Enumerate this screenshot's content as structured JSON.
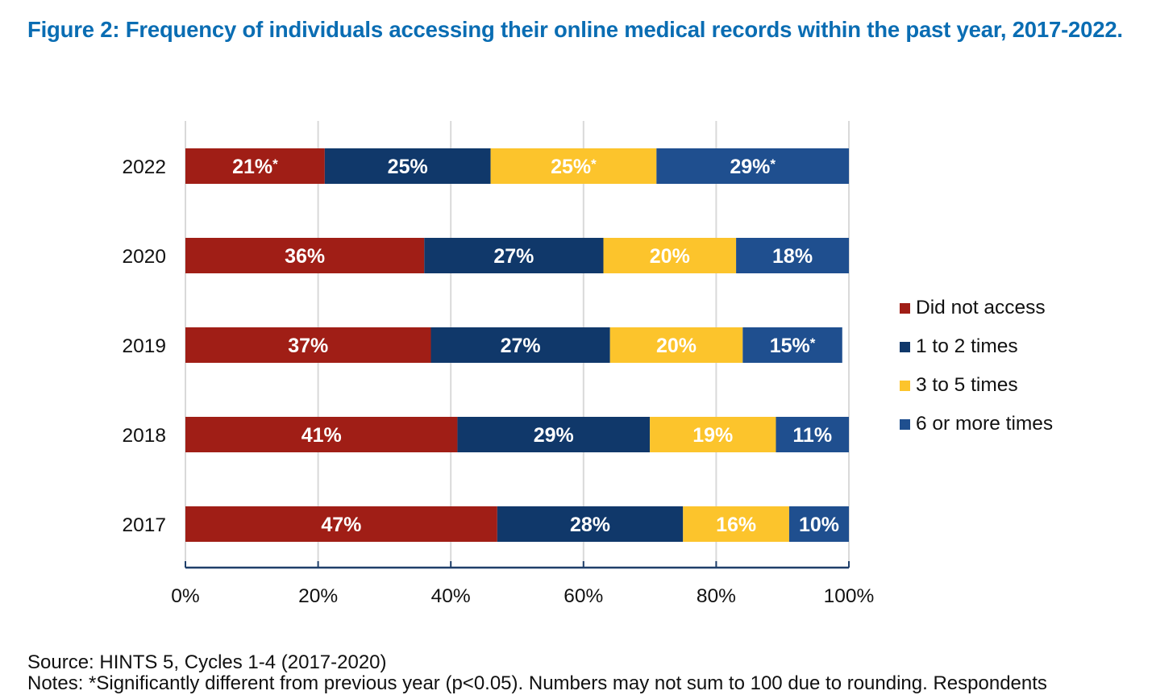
{
  "title": "Figure 2: Frequency of individuals accessing their online medical records within the past year, 2017-2022.",
  "source": "Source: HINTS 5, Cycles 1-4 (2017-2020)",
  "notes": "Notes: *Significantly different from previous year (p<0.05). Numbers may not sum to 100 due to rounding. Respondents",
  "chart_data": {
    "type": "bar",
    "orientation": "horizontal",
    "stacked": true,
    "title": "Figure 2: Frequency of individuals accessing their online medical records within the past year, 2017-2022.",
    "xlabel": "",
    "ylabel": "",
    "xlim": [
      0,
      100
    ],
    "x_ticks": [
      "0%",
      "20%",
      "40%",
      "60%",
      "80%",
      "100%"
    ],
    "x_tick_values": [
      0,
      20,
      40,
      60,
      80,
      100
    ],
    "grid": true,
    "legend_position": "right",
    "categories": [
      "2022",
      "2020",
      "2019",
      "2018",
      "2017"
    ],
    "series": [
      {
        "name": "Did not access",
        "color": "#a01e16",
        "values": [
          21,
          36,
          37,
          41,
          47
        ],
        "labels": [
          "21%*",
          "36%",
          "37%",
          "41%",
          "47%"
        ]
      },
      {
        "name": "1 to 2 times",
        "color": "#10386a",
        "values": [
          25,
          27,
          27,
          29,
          28
        ],
        "labels": [
          "25%",
          "27%",
          "27%",
          "29%",
          "28%"
        ]
      },
      {
        "name": "3 to 5 times",
        "color": "#fcc42c",
        "values": [
          25,
          20,
          20,
          19,
          16
        ],
        "labels": [
          "25%*",
          "20%",
          "20%",
          "19%",
          "16%"
        ]
      },
      {
        "name": "6 or more times",
        "color": "#1f4f8f",
        "values": [
          29,
          18,
          15,
          11,
          10
        ],
        "labels": [
          "29%*",
          "18%",
          "15%*",
          "11%",
          "10%"
        ]
      }
    ]
  },
  "colors": {
    "title": "#0a6db3",
    "grid": "#d9d9d9",
    "axis": "#1f3f6a",
    "label_text": "#ffffff"
  }
}
